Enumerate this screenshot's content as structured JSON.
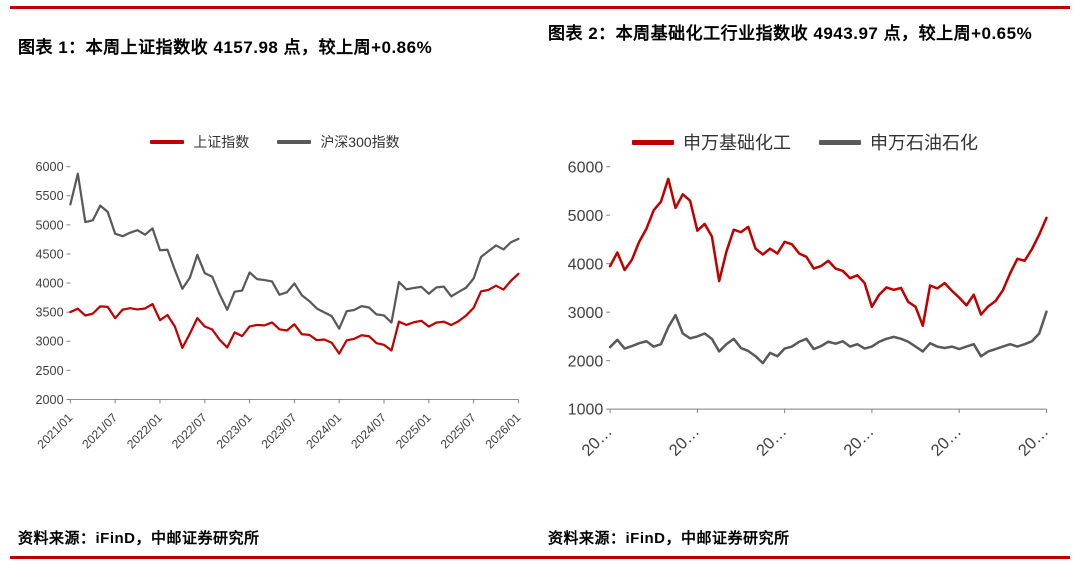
{
  "page": {
    "accent_color": "#C00000",
    "gray_series_color": "#595959",
    "axis_text_color": "#404040",
    "axis_line_color": "#7f7f7f"
  },
  "figures": [
    {
      "label": "图表 1",
      "title": "图表 1：本周上证指数收 4157.98 点，较上周+0.86%",
      "latest_value": 4157.98,
      "wow_change_pct": "+0.86%",
      "source": "资料来源：iFinD，中邮证券研究所"
    },
    {
      "label": "图表 2",
      "title": "图表 2：本周基础化工行业指数收 4943.97 点，较上周+0.65%",
      "latest_value": 4943.97,
      "wow_change_pct": "+0.65%",
      "source": "资料来源：iFinD，中邮证券研究所"
    }
  ],
  "chart_data": [
    {
      "type": "line",
      "title": "本周上证指数收 4157.98 点，较上周+0.86%",
      "xlabel": "",
      "ylabel": "",
      "grid": false,
      "legend_position": "top",
      "x": {
        "start": "2021/01",
        "end": "2026/01",
        "freq": "monthly",
        "count": 61
      },
      "ylim": [
        2000,
        6000
      ],
      "ytick_step": 500,
      "xticks": [
        {
          "index": 0,
          "label": "2021/01"
        },
        {
          "index": 6,
          "label": "2021/07"
        },
        {
          "index": 12,
          "label": "2022/01"
        },
        {
          "index": 18,
          "label": "2022/07"
        },
        {
          "index": 24,
          "label": "2023/01"
        },
        {
          "index": 30,
          "label": "2023/07"
        },
        {
          "index": 36,
          "label": "2024/01"
        },
        {
          "index": 42,
          "label": "2024/07"
        },
        {
          "index": 48,
          "label": "2025/01"
        },
        {
          "index": 54,
          "label": "2025/07"
        },
        {
          "index": 60,
          "label": "2026/01"
        }
      ],
      "series": [
        {
          "name": "上证指数",
          "key": "shanghai-composite",
          "color": "#C00000",
          "values": [
            3502,
            3560,
            3442,
            3475,
            3600,
            3591,
            3397,
            3543,
            3568,
            3547,
            3564,
            3640,
            3361,
            3452,
            3252,
            2886,
            3130,
            3399,
            3253,
            3202,
            3024,
            2893,
            3151,
            3089,
            3255,
            3280,
            3273,
            3323,
            3205,
            3185,
            3291,
            3120,
            3110,
            3019,
            3030,
            2975,
            2789,
            3015,
            3041,
            3104,
            3087,
            2967,
            2938,
            2842,
            3336,
            3280,
            3326,
            3352,
            3251,
            3320,
            3336,
            3279,
            3347,
            3444,
            3573,
            3858,
            3883,
            3955,
            3889,
            4040,
            4158
          ]
        },
        {
          "name": "沪深300指数",
          "key": "csi-300",
          "color": "#595959",
          "values": [
            5352,
            5880,
            5048,
            5078,
            5331,
            5224,
            4849,
            4805,
            4866,
            4909,
            4832,
            4940,
            4563,
            4574,
            4223,
            3902,
            4092,
            4485,
            4170,
            4108,
            3805,
            3541,
            3852,
            3872,
            4181,
            4069,
            4051,
            4029,
            3800,
            3842,
            3993,
            3790,
            3690,
            3563,
            3496,
            3432,
            3216,
            3516,
            3537,
            3604,
            3580,
            3462,
            3443,
            3321,
            4018,
            3891,
            3916,
            3935,
            3817,
            3924,
            3940,
            3771,
            3848,
            3921,
            4078,
            4450,
            4550,
            4646,
            4578,
            4701,
            4760
          ]
        }
      ]
    },
    {
      "type": "line",
      "title": "本周基础化工行业指数收 4943.97 点，较上周+0.65%",
      "xlabel": "",
      "ylabel": "",
      "grid": false,
      "legend_position": "top",
      "x": {
        "start": "2021/01",
        "end": "2026/01",
        "freq": "monthly",
        "count": 61
      },
      "ylim": [
        1000,
        6000
      ],
      "ytick_step": 1000,
      "xticks": [
        {
          "index": 0,
          "label": "20…"
        },
        {
          "index": 12,
          "label": "20…"
        },
        {
          "index": 24,
          "label": "20…"
        },
        {
          "index": 36,
          "label": "20…"
        },
        {
          "index": 48,
          "label": "20…"
        },
        {
          "index": 60,
          "label": "20…"
        }
      ],
      "series": [
        {
          "name": "申万基础化工",
          "key": "sw-basic-chemicals",
          "color": "#C00000",
          "values": [
            3950,
            4230,
            3870,
            4080,
            4450,
            4720,
            5100,
            5280,
            5750,
            5150,
            5430,
            5300,
            4680,
            4820,
            4560,
            3640,
            4250,
            4700,
            4650,
            4760,
            4310,
            4190,
            4310,
            4210,
            4450,
            4400,
            4210,
            4140,
            3900,
            3950,
            4060,
            3900,
            3850,
            3700,
            3760,
            3600,
            3110,
            3360,
            3510,
            3460,
            3500,
            3210,
            3110,
            2720,
            3550,
            3490,
            3600,
            3440,
            3300,
            3140,
            3360,
            2950,
            3120,
            3230,
            3450,
            3800,
            4100,
            4060,
            4300,
            4600,
            4944
          ]
        },
        {
          "name": "申万石油石化",
          "key": "sw-petroleum-petrochemicals",
          "color": "#595959",
          "values": [
            2280,
            2430,
            2250,
            2300,
            2360,
            2400,
            2290,
            2340,
            2690,
            2940,
            2560,
            2460,
            2500,
            2560,
            2450,
            2190,
            2340,
            2450,
            2260,
            2200,
            2090,
            1950,
            2160,
            2090,
            2250,
            2290,
            2390,
            2450,
            2240,
            2300,
            2390,
            2350,
            2400,
            2290,
            2340,
            2250,
            2290,
            2390,
            2450,
            2490,
            2450,
            2390,
            2290,
            2190,
            2360,
            2290,
            2260,
            2290,
            2240,
            2290,
            2340,
            2090,
            2190,
            2240,
            2290,
            2340,
            2290,
            2340,
            2400,
            2560,
            3010
          ]
        }
      ]
    }
  ]
}
